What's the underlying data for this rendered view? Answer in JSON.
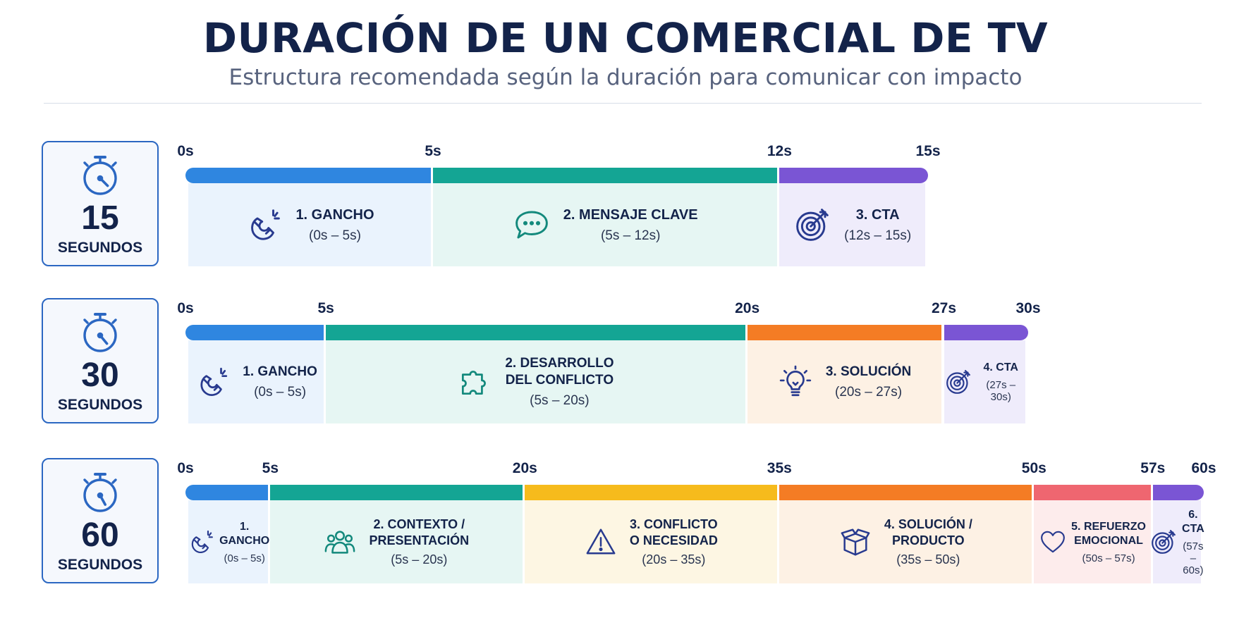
{
  "title": "DURACIÓN DE UN COMERCIAL DE TV",
  "subtitle": "Estructura recomendada según la duración para comunicar con impacto",
  "rows": [
    {
      "seconds": "15",
      "unit": "SEGUNDOS",
      "total": 15,
      "segments": [
        {
          "label": "1. GANCHO",
          "range": "(0s – 5s)",
          "start": 0,
          "end": 5,
          "icon": "magnet-icon",
          "color": "#2f86e0",
          "bg": "#eaf3fd"
        },
        {
          "label": "2. MENSAJE CLAVE",
          "range": "(5s – 12s)",
          "start": 5,
          "end": 12,
          "icon": "chat-bubble-icon",
          "color": "#14a594",
          "bg": "#e6f6f3"
        },
        {
          "label": "3. CTA",
          "range": "(12s – 15s)",
          "start": 12,
          "end": 15,
          "icon": "target-icon",
          "color": "#7a55d4",
          "bg": "#efecfb"
        }
      ]
    },
    {
      "seconds": "30",
      "unit": "SEGUNDOS",
      "total": 30,
      "segments": [
        {
          "label": "1. GANCHO",
          "range": "(0s – 5s)",
          "start": 0,
          "end": 5,
          "icon": "magnet-icon",
          "color": "#2f86e0",
          "bg": "#eaf3fd"
        },
        {
          "label": "2. DESARROLLO\nDEL CONFLICTO",
          "range": "(5s – 20s)",
          "start": 5,
          "end": 20,
          "icon": "puzzle-icon",
          "color": "#14a594",
          "bg": "#e6f6f3"
        },
        {
          "label": "3. SOLUCIÓN",
          "range": "(20s – 27s)",
          "start": 20,
          "end": 27,
          "icon": "lightbulb-icon",
          "color": "#f47c24",
          "bg": "#fdf1e4"
        },
        {
          "label": "4. CTA",
          "range": "(27s – 30s)",
          "start": 27,
          "end": 30,
          "icon": "target-icon",
          "color": "#7a55d4",
          "bg": "#efecfb"
        }
      ]
    },
    {
      "seconds": "60",
      "unit": "SEGUNDOS",
      "total": 60,
      "segments": [
        {
          "label": "1. GANCHO",
          "range": "(0s – 5s)",
          "start": 0,
          "end": 5,
          "icon": "magnet-icon",
          "color": "#2f86e0",
          "bg": "#eaf3fd"
        },
        {
          "label": "2. CONTEXTO /\nPRESENTACIÓN",
          "range": "(5s – 20s)",
          "start": 5,
          "end": 20,
          "icon": "people-icon",
          "color": "#14a594",
          "bg": "#e6f6f3"
        },
        {
          "label": "3. CONFLICTO\nO NECESIDAD",
          "range": "(20s – 35s)",
          "start": 20,
          "end": 35,
          "icon": "warning-icon",
          "color": "#f6bb1c",
          "bg": "#fdf6e3"
        },
        {
          "label": "4. SOLUCIÓN /\nPRODUCTO",
          "range": "(35s – 50s)",
          "start": 35,
          "end": 50,
          "icon": "box-icon",
          "color": "#f47c24",
          "bg": "#fdf1e4"
        },
        {
          "label": "5. REFUERZO\nEMOCIONAL",
          "range": "(50s – 57s)",
          "start": 50,
          "end": 57,
          "icon": "heart-icon",
          "color": "#ef6670",
          "bg": "#fdecec"
        },
        {
          "label": "6. CTA",
          "range": "(57s – 60s)",
          "start": 57,
          "end": 60,
          "icon": "target-icon",
          "color": "#7a55d4",
          "bg": "#efecfb"
        }
      ]
    }
  ]
}
